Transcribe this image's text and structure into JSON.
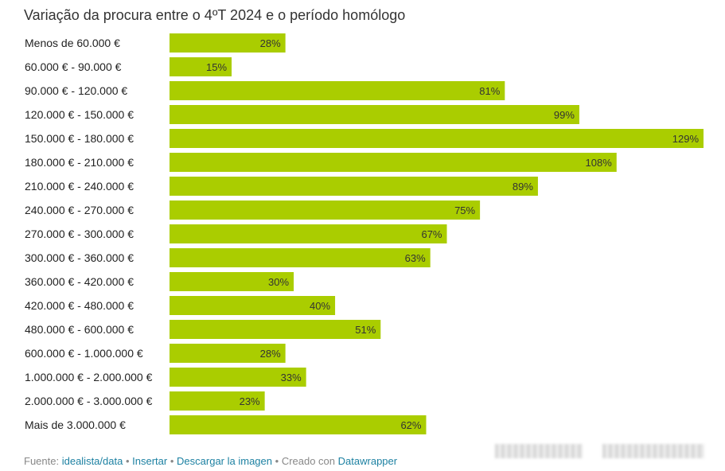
{
  "chart_data": {
    "type": "bar",
    "orientation": "horizontal",
    "title": "Variação da procura entre o 4ºT 2024 e o período homólogo",
    "categories": [
      "Menos de 60.000 €",
      "60.000 € - 90.000 €",
      "90.000 € - 120.000 €",
      "120.000 € - 150.000 €",
      "150.000 € - 180.000 €",
      "180.000 € - 210.000 €",
      "210.000 € - 240.000 €",
      "240.000 € - 270.000 €",
      "270.000 € - 300.000 €",
      "300.000 € - 360.000 €",
      "360.000 € - 420.000 €",
      "420.000 € - 480.000 €",
      "480.000 € - 600.000 €",
      "600.000 € - 1.000.000 €",
      "1.000.000 € - 2.000.000 €",
      "2.000.000 € - 3.000.000 €",
      "Mais de 3.000.000 €"
    ],
    "values": [
      28,
      15,
      81,
      99,
      129,
      108,
      89,
      75,
      67,
      63,
      30,
      40,
      51,
      28,
      33,
      23,
      62
    ],
    "value_suffix": "%",
    "xlim": [
      0,
      129
    ],
    "bar_color": "#aacd00",
    "grid": false,
    "legend": "none"
  },
  "footer": {
    "source_prefix": "Fuente:",
    "source_link": "idealista/data",
    "separator": "•",
    "insert_link": "Insertar",
    "download_link": "Descargar la imagen",
    "created_with": "Creado con",
    "tool_link": "Datawrapper"
  }
}
